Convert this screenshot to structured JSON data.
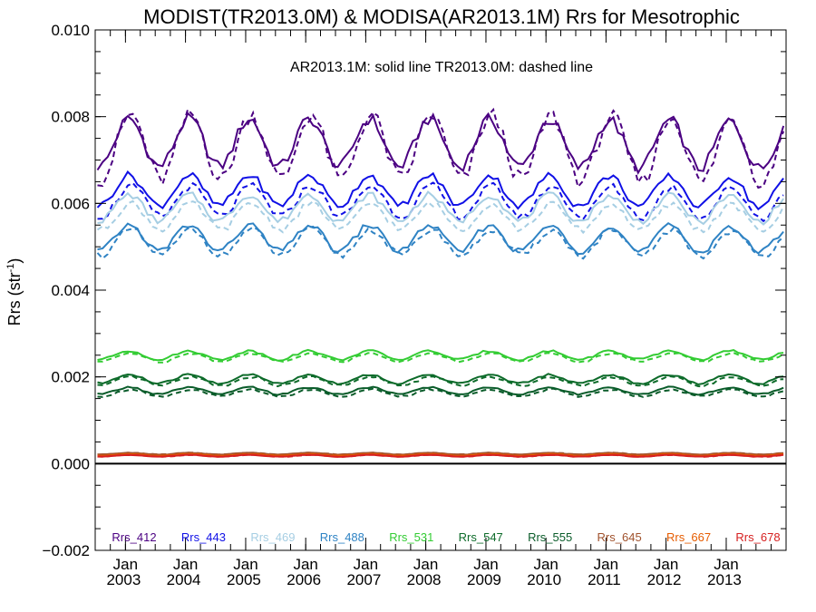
{
  "chart_data": {
    "type": "line",
    "title": "MODIST(TR2013.0M) & MODISA(AR2013.1M)  Rrs for Mesotrophic",
    "annotation": "AR2013.1M: solid line   TR2013.0M: dashed line",
    "ylabel": "Rrs (str",
    "ylabel_sup": "-1",
    "ylabel_close": ")",
    "xlabel": "",
    "ylim": [
      -0.002,
      0.01
    ],
    "xlim": [
      "2002-07-01",
      "2013-12-31"
    ],
    "y_ticks": [
      "0.010",
      "0.008",
      "0.006",
      "0.004",
      "0.002",
      "0.000",
      "−0.002"
    ],
    "y_tick_values": [
      0.01,
      0.008,
      0.006,
      0.004,
      0.002,
      0.0,
      -0.002
    ],
    "x_ticks": [
      {
        "month": "Jan",
        "year": "2003",
        "date": "2003-01-01"
      },
      {
        "month": "Jan",
        "year": "2004",
        "date": "2004-01-01"
      },
      {
        "month": "Jan",
        "year": "2005",
        "date": "2005-01-01"
      },
      {
        "month": "Jan",
        "year": "2006",
        "date": "2006-01-01"
      },
      {
        "month": "Jan",
        "year": "2007",
        "date": "2007-01-01"
      },
      {
        "month": "Jan",
        "year": "2008",
        "date": "2008-01-01"
      },
      {
        "month": "Jan",
        "year": "2009",
        "date": "2009-01-01"
      },
      {
        "month": "Jan",
        "year": "2010",
        "date": "2010-01-01"
      },
      {
        "month": "Jan",
        "year": "2011",
        "date": "2011-01-01"
      },
      {
        "month": "Jan",
        "year": "2012",
        "date": "2012-01-01"
      },
      {
        "month": "Jan",
        "year": "2013",
        "date": "2013-01-01"
      }
    ],
    "zero_line": 0.0,
    "legend_placement": "bottom",
    "series": [
      {
        "name": "Rrs_412",
        "color": "#4b0082",
        "base": 0.0074,
        "amp": 0.00055,
        "amp_dashed": 0.00075,
        "offset_dashed": -0.0001
      },
      {
        "name": "Rrs_443",
        "color": "#1010e6",
        "base": 0.0063,
        "amp": 0.00035,
        "amp_dashed": 0.00035,
        "offset_dashed": -0.00025
      },
      {
        "name": "Rrs_469",
        "color": "#a6cee3",
        "base": 0.0059,
        "amp": 0.0003,
        "amp_dashed": 0.0003,
        "offset_dashed": -0.0002
      },
      {
        "name": "Rrs_488",
        "color": "#2f83c4",
        "base": 0.0052,
        "amp": 0.0003,
        "amp_dashed": 0.0003,
        "offset_dashed": -0.0001
      },
      {
        "name": "Rrs_531",
        "color": "#33cc33",
        "base": 0.0025,
        "amp": 0.0001,
        "amp_dashed": 0.0001,
        "offset_dashed": -5e-05
      },
      {
        "name": "Rrs_547",
        "color": "#0d6b2a",
        "base": 0.00195,
        "amp": 0.0001,
        "amp_dashed": 0.0001,
        "offset_dashed": -5e-05
      },
      {
        "name": "Rrs_555",
        "color": "#0a5c2a",
        "base": 0.00168,
        "amp": 8e-05,
        "amp_dashed": 8e-05,
        "offset_dashed": -5e-05
      },
      {
        "name": "Rrs_645",
        "color": "#a0522d",
        "base": 0.00023,
        "amp": 2e-05,
        "amp_dashed": 2e-05,
        "offset_dashed": 0.0
      },
      {
        "name": "Rrs_667",
        "color": "#e65c00",
        "base": 0.0002,
        "amp": 2e-05,
        "amp_dashed": 2e-05,
        "offset_dashed": 0.0
      },
      {
        "name": "Rrs_678",
        "color": "#d62020",
        "base": 0.00018,
        "amp": 2e-05,
        "amp_dashed": 2e-05,
        "offset_dashed": 0.0
      }
    ]
  }
}
